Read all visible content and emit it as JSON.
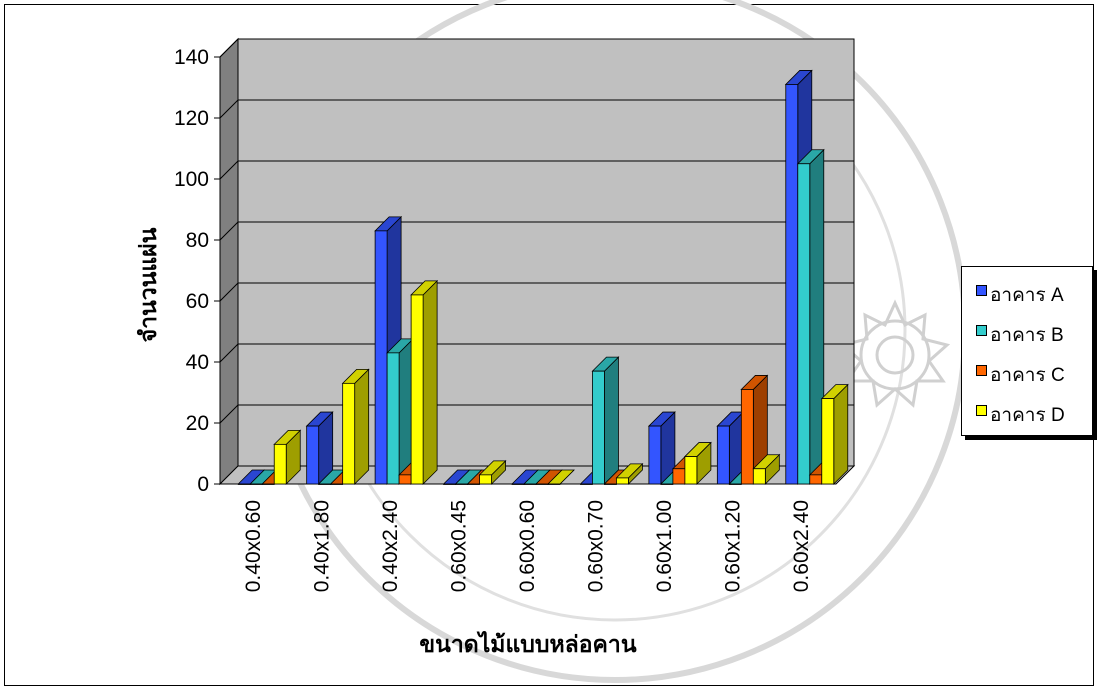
{
  "chart_data": {
    "type": "bar",
    "style": "3d-clustered-column",
    "title": "",
    "xlabel": "ขนาดไม้แบบหล่อคาน",
    "ylabel": "จำนวนแผ่น",
    "ylim": [
      0,
      140
    ],
    "yticks": [
      0,
      20,
      40,
      60,
      80,
      100,
      120,
      140
    ],
    "grid": true,
    "legend_position": "right",
    "categories": [
      "0.40x0.60",
      "0.40x1.80",
      "0.40x2.40",
      "0.60x0.45",
      "0.60x0.60",
      "0.60x0.70",
      "0.60x1.00",
      "0.60x1.20",
      "0.60x2.40"
    ],
    "series": [
      {
        "name": "อาคาร A",
        "color": "#3355ff",
        "values": [
          0,
          19,
          83,
          0,
          0,
          0,
          19,
          19,
          131
        ]
      },
      {
        "name": "อาคาร B",
        "color": "#33cccc",
        "values": [
          0,
          0,
          43,
          0,
          0,
          37,
          0,
          0,
          105
        ]
      },
      {
        "name": "อาคาร C",
        "color": "#ff6600",
        "values": [
          0,
          0,
          3,
          0,
          0,
          0,
          5,
          31,
          3
        ]
      },
      {
        "name": "อาคาร D",
        "color": "#ffff00",
        "values": [
          13,
          33,
          62,
          3,
          0,
          2,
          9,
          5,
          28
        ]
      }
    ]
  }
}
